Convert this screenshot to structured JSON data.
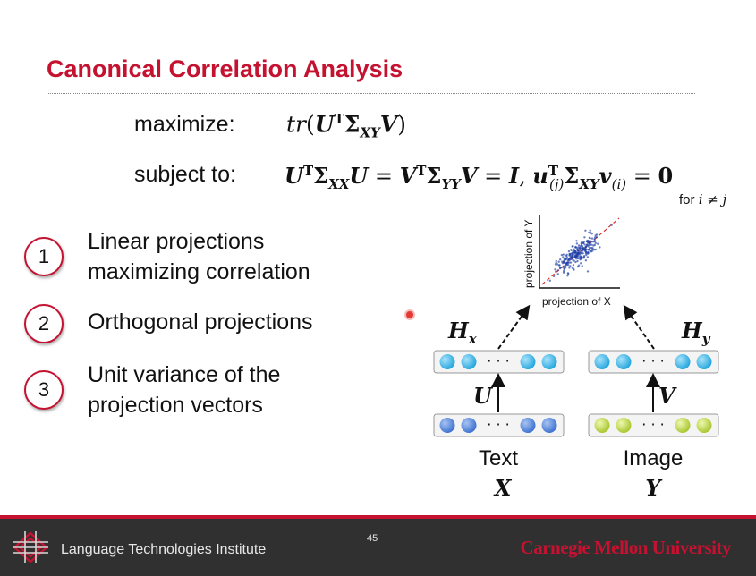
{
  "slide": {
    "title": "Canonical Correlation Analysis",
    "maximize_label": "maximize:",
    "subject_to_label": "subject to:",
    "for_note_prefix": "for",
    "for_note_cond": "i ≠ j"
  },
  "points": [
    {
      "number": "1",
      "line1": "Linear projections",
      "line2": "maximizing correlation"
    },
    {
      "number": "2",
      "line1": "Orthogonal projections",
      "line2": ""
    },
    {
      "number": "3",
      "line1": "Unit variance of the",
      "line2": "projection vectors"
    }
  ],
  "diagram": {
    "y_axis_label": "projection of Y",
    "x_axis_label": "projection of X",
    "left_hidden": "H",
    "left_hidden_sub": "x",
    "right_hidden": "H",
    "right_hidden_sub": "y",
    "left_weight": "U",
    "right_weight": "V",
    "dots": "· · ·",
    "left_caption": "Text",
    "left_var": "X",
    "right_caption": "Image",
    "right_var": "Y",
    "colors": {
      "hidden_node": "#3db6e8",
      "text_input_node": "#4a7fd6",
      "image_input_node": "#b9d43a",
      "scatter_point": "#1f3fa8",
      "diagonal": "#d9302c"
    }
  },
  "footer": {
    "institute": "Language Technologies Institute",
    "page_number": "45",
    "university": "Carnegie Mellon University"
  }
}
